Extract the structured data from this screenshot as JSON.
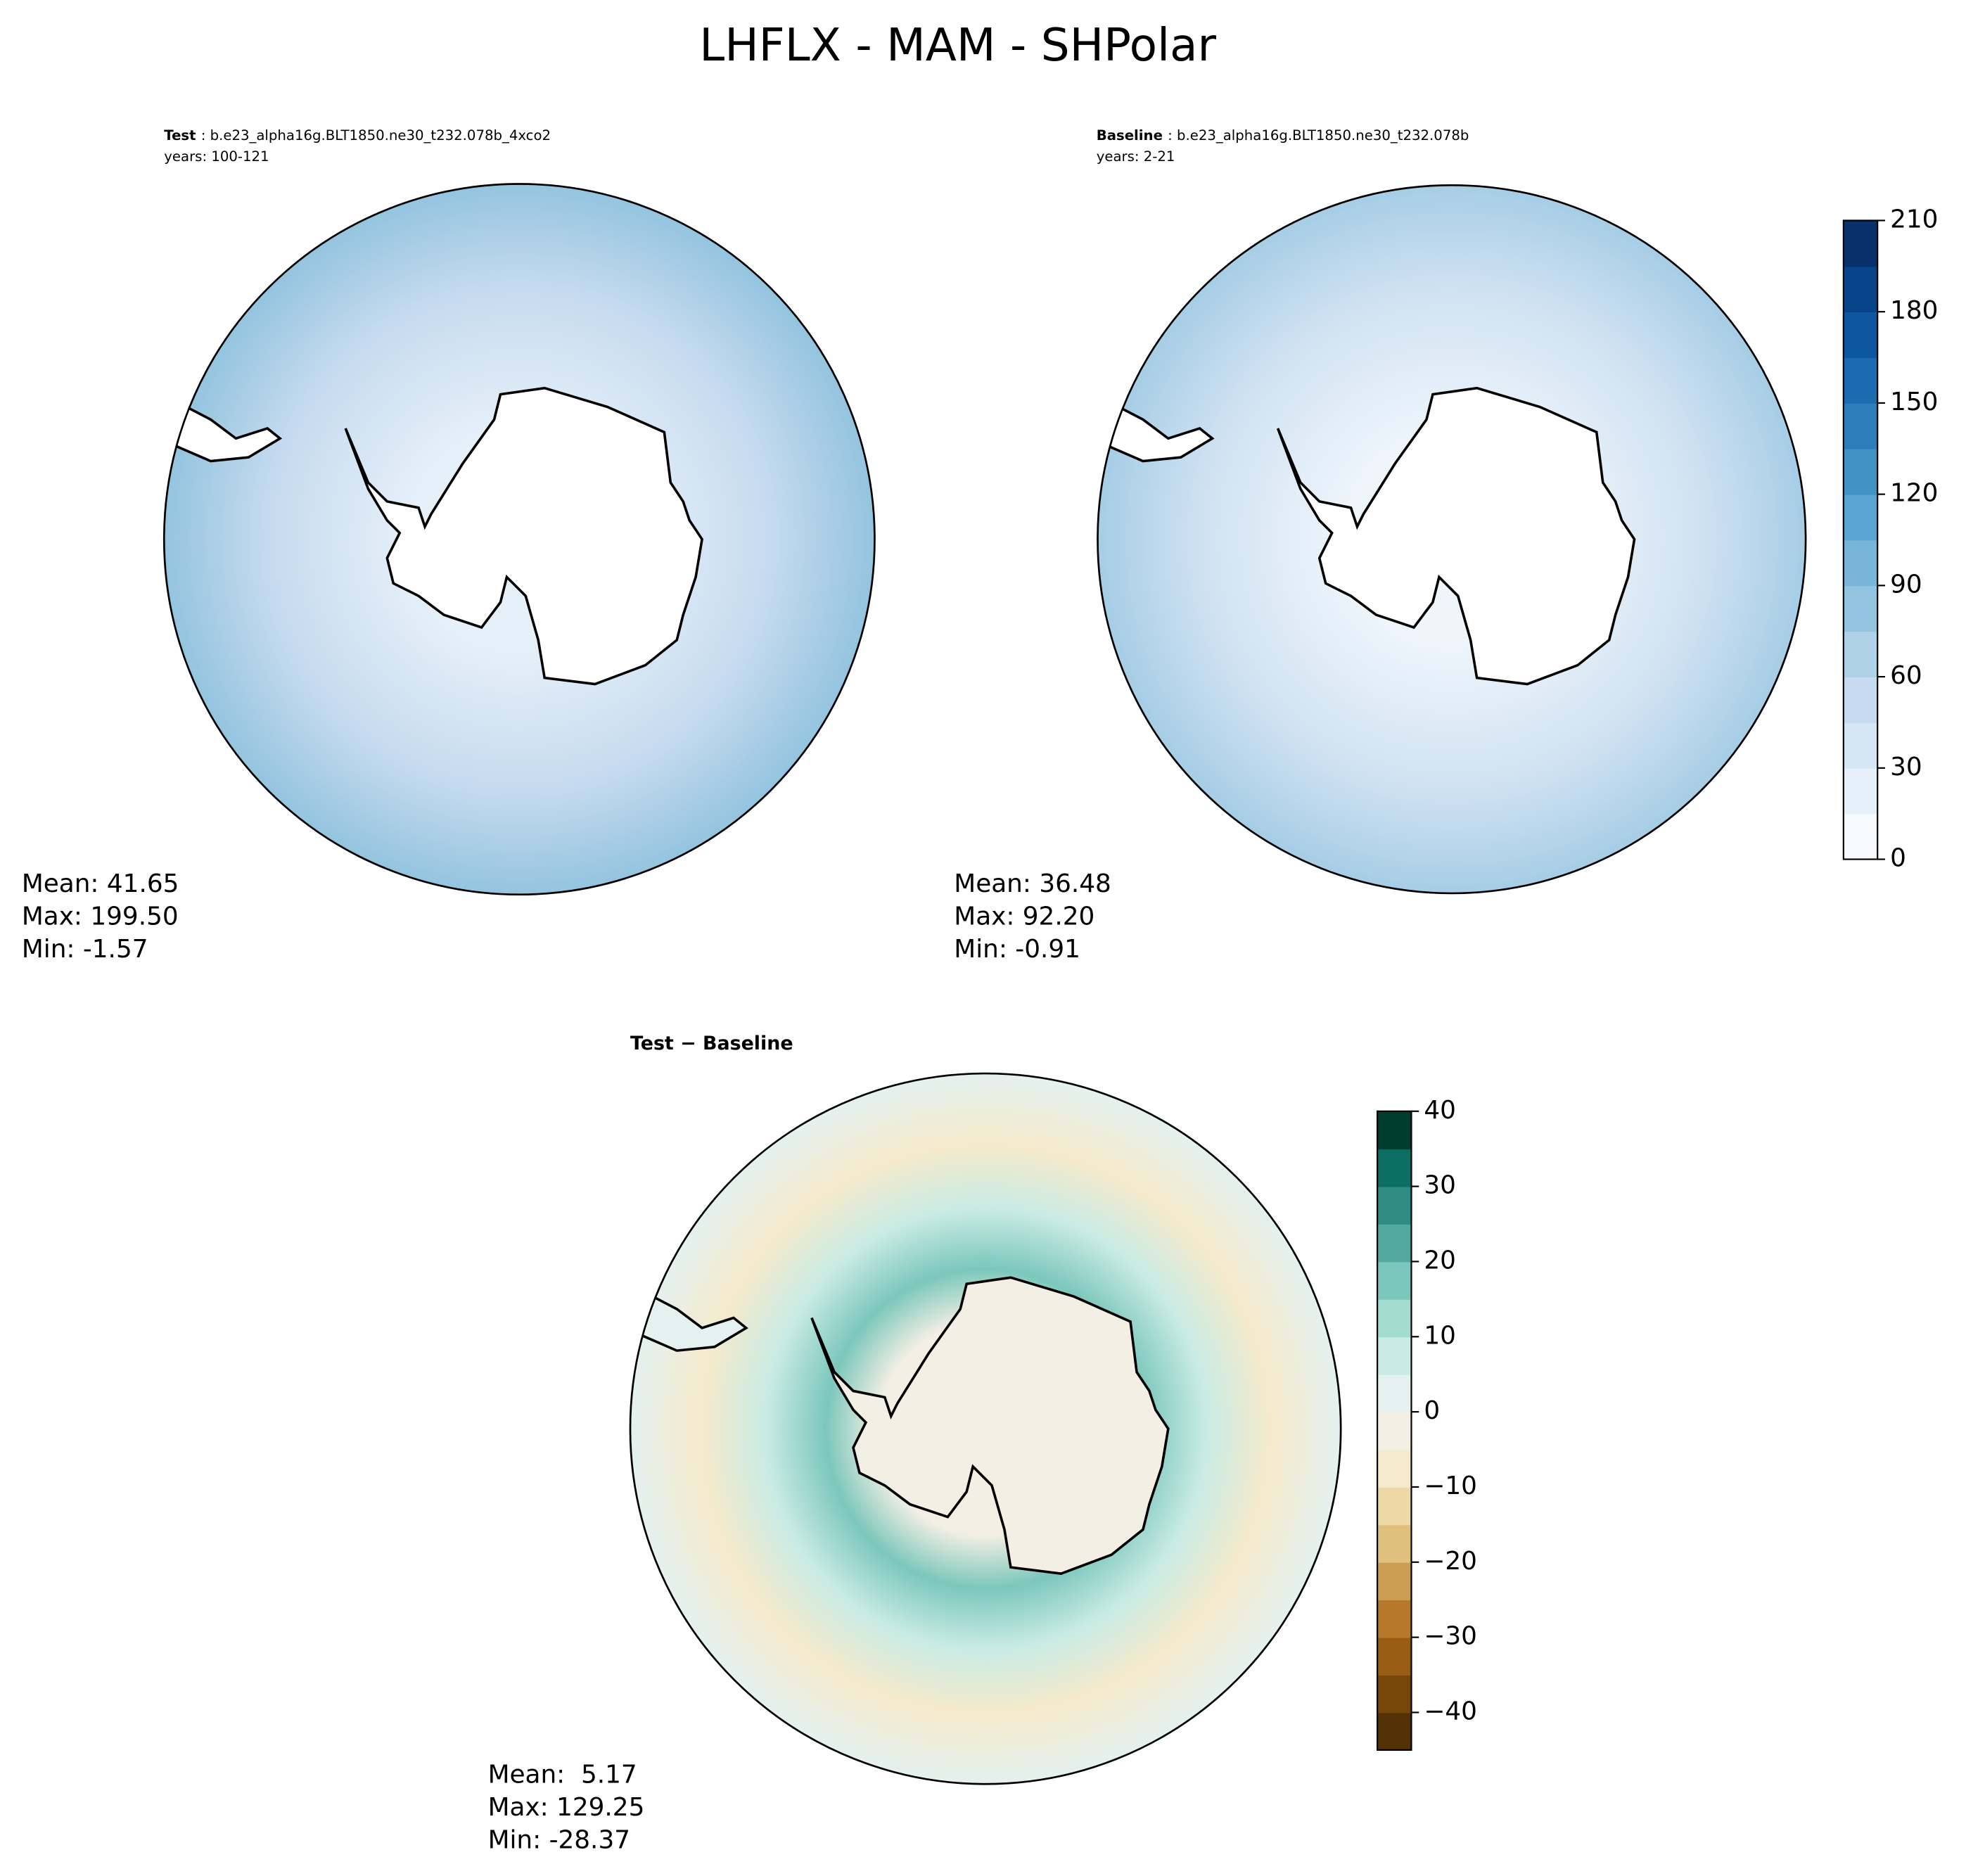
{
  "title": "LHFLX - MAM - SHPolar",
  "chart_data": [
    {
      "type": "map",
      "title_bold": "Test",
      "title": ": b.e23_alpha16g.BLT1850.ne30_t232.078b_4xco2",
      "subtitle": "years: 100-121",
      "stats": [
        "Mean: 41.65",
        "Max: 199.50",
        "Min: -1.57"
      ]
    },
    {
      "type": "map",
      "title_bold": "Baseline",
      "title": ": b.e23_alpha16g.BLT1850.ne30_t232.078b",
      "subtitle": "years: 2-21",
      "stats": [
        "Mean: 36.48",
        "Max: 92.20",
        "Min: -0.91"
      ],
      "colorbar": {
        "ylim": [
          0,
          210
        ],
        "yticks": [
          0,
          30,
          60,
          90,
          120,
          150,
          180,
          210
        ],
        "colors": [
          "#f7fbff",
          "#e6f0f9",
          "#d6e6f4",
          "#c6dbef",
          "#b0d2e8",
          "#94c4df",
          "#79b5d9",
          "#5ba3d0",
          "#4292c6",
          "#2f7ebc",
          "#1c6ab0",
          "#0d57a1",
          "#084489",
          "#08306b"
        ]
      }
    },
    {
      "type": "map",
      "title_bold": "Test − Baseline",
      "stats": [
        "Mean:  5.17",
        "Max: 129.25",
        "Min: -28.37"
      ],
      "colorbar": {
        "ylim": [
          -45,
          40
        ],
        "yticks": [
          {
            "value": -40,
            "label": "−40"
          },
          {
            "value": -30,
            "label": "−30"
          },
          {
            "value": -20,
            "label": "−20"
          },
          {
            "value": -10,
            "label": "−10"
          },
          0,
          10,
          20,
          30,
          40
        ],
        "colors": [
          "#543005",
          "#774709",
          "#985d12",
          "#b6782b",
          "#cc9e54",
          "#dfc17d",
          "#ecd9a6",
          "#f5eacb",
          "#f4efe4",
          "#e4f1ef",
          "#c9ebe5",
          "#a4dcd2",
          "#7cc7bb",
          "#52aa9f",
          "#2e8c82",
          "#0d6e63",
          "#003c30"
        ]
      }
    }
  ]
}
